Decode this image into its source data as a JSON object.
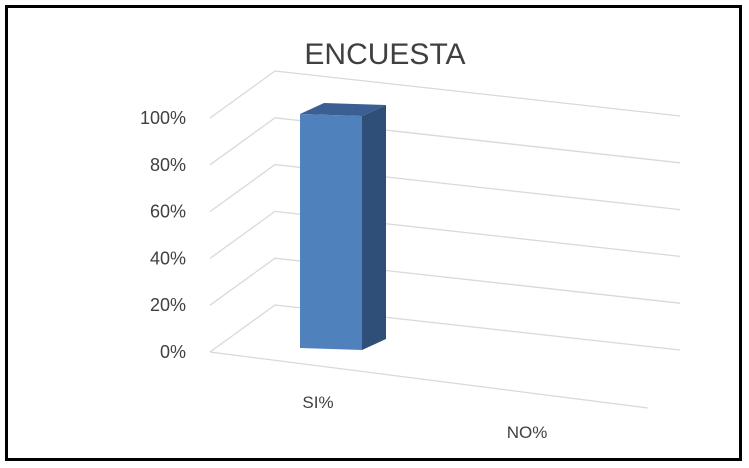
{
  "chart_data": {
    "type": "bar",
    "title": "ENCUESTA",
    "categories": [
      "SI%",
      "NO%"
    ],
    "values": [
      100,
      0
    ],
    "ylim": [
      0,
      100
    ],
    "yticks": [
      "0%",
      "20%",
      "40%",
      "60%",
      "80%",
      "100%"
    ],
    "grid": true,
    "legend": "none",
    "colors": {
      "front": "#4f81bd",
      "side": "#2f4f79",
      "top": "#3b5f93",
      "grid": "#d9d9d9"
    }
  }
}
